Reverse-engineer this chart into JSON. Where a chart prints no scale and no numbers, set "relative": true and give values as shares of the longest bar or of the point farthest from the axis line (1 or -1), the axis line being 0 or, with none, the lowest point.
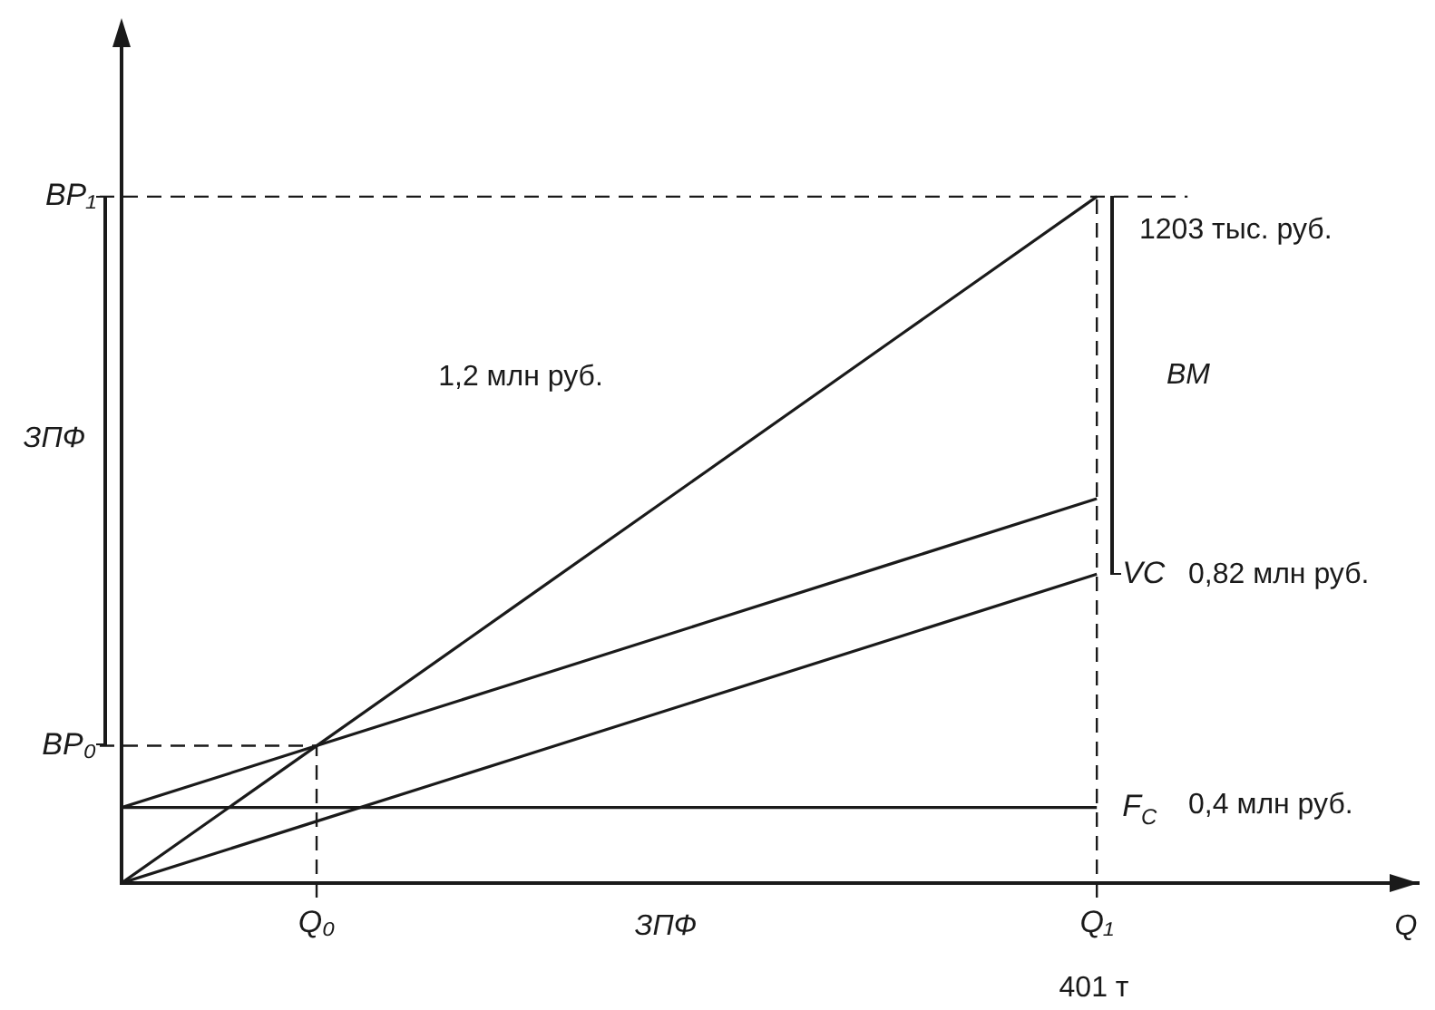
{
  "chart_data": {
    "type": "line",
    "relative": true,
    "tick_labels": "x",
    "marker": "none",
    "categories": [
      null,
      "Q₀",
      null,
      null,
      null,
      "Q₁"
    ],
    "series": [
      {
        "color": "#1a1a1a",
        "values": [
          0,
          0.2,
          0.4,
          0.6,
          0.8,
          1
        ]
      },
      {
        "color": "#1a1a1a",
        "values": [
          0.11,
          0.2,
          0.29,
          0.38,
          0.47,
          0.56
        ]
      },
      {
        "name": "VC",
        "color": "#1a1a1a",
        "values": [
          0,
          0.09,
          0.18,
          0.27,
          0.36,
          0.45
        ]
      },
      {
        "name": "F$_{C}$",
        "color": "#1a1a1a",
        "values": [
          0.11,
          0.11,
          0.11,
          0.11,
          0.11,
          0.11
        ]
      }
    ],
    "ref_lines": [
      {
        "axis": "y",
        "value": 1,
        "label": "BP₁",
        "line_style": "dashed",
        "color": "#1a1a1a"
      },
      {
        "axis": "y",
        "value": 0.2,
        "label": "BP₀",
        "line_style": "dashed",
        "color": "#1a1a1a"
      },
      {
        "axis": "x",
        "value": "Q₀",
        "line_style": "dashed",
        "color": "#1a1a1a"
      },
      {
        "axis": "x",
        "value": "Q₁",
        "line_style": "dashed",
        "color": "#1a1a1a"
      }
    ],
    "annotations": [
      "1,2 млн руб.",
      "1203 тыс. руб.",
      "ЗПФ",
      "BM",
      "0,82 млн руб.",
      "0,4 млн руб.",
      "ЗПФ",
      "401 т",
      "Q"
    ]
  }
}
